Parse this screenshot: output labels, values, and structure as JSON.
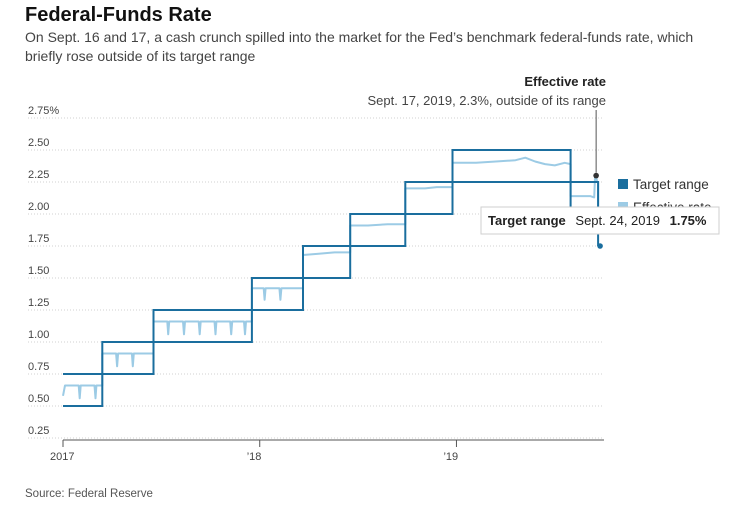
{
  "header": {
    "title": "Federal-Funds Rate",
    "subtitle": "On Sept. 16 and 17, a cash crunch spilled into the market for the Fed’s benchmark federal-funds rate, which briefly rose outside of its target range"
  },
  "footer": {
    "source": "Source: Federal Reserve"
  },
  "colors": {
    "target": "#1a6e9e",
    "effective": "#9ccbe5",
    "grid": "#d0d0d0",
    "axis": "#555555",
    "text": "#222222"
  },
  "annotation": {
    "title": "Effective rate",
    "text": "Sept. 17, 2019, 2.3%, outside of its range"
  },
  "tooltip": {
    "label": "Target range",
    "date": "Sept. 24, 2019",
    "value": "1.75%"
  },
  "chart_data": {
    "type": "line",
    "title": "Federal-Funds Rate",
    "xlabel": "",
    "ylabel": "",
    "x_unit": "decimal year",
    "xlim": [
      2017.0,
      2019.75
    ],
    "ylim": [
      0.25,
      2.75
    ],
    "y_ticks": [
      0.25,
      0.5,
      0.75,
      1.0,
      1.25,
      1.5,
      1.75,
      2.0,
      2.25,
      2.5,
      2.75
    ],
    "y_tick_labels": [
      "0.25",
      "0.50",
      "0.75",
      "1.00",
      "1.25",
      "1.50",
      "1.75",
      "2.00",
      "2.25",
      "2.50",
      "2.75%"
    ],
    "x_ticks": [
      2017.0,
      2018.0,
      2019.0
    ],
    "x_tick_labels": [
      "2017",
      "’18",
      "’19"
    ],
    "grid": true,
    "legend": "right",
    "legend_labels": [
      "Target range",
      "Effective rate"
    ],
    "series": [
      {
        "name": "Target range",
        "kind": "range-steps",
        "upper": [
          [
            2017.0,
            0.75
          ],
          [
            2017.2,
            0.75
          ],
          [
            2017.2,
            1.0
          ],
          [
            2017.46,
            1.0
          ],
          [
            2017.46,
            1.25
          ],
          [
            2017.96,
            1.25
          ],
          [
            2017.96,
            1.5
          ],
          [
            2018.22,
            1.5
          ],
          [
            2018.22,
            1.75
          ],
          [
            2018.46,
            1.75
          ],
          [
            2018.46,
            2.0
          ],
          [
            2018.74,
            2.0
          ],
          [
            2018.74,
            2.25
          ],
          [
            2018.98,
            2.25
          ],
          [
            2018.98,
            2.5
          ],
          [
            2019.58,
            2.5
          ],
          [
            2019.58,
            2.25
          ],
          [
            2019.72,
            2.25
          ],
          [
            2019.72,
            2.0
          ]
        ],
        "lower": [
          [
            2017.0,
            0.5
          ],
          [
            2017.2,
            0.5
          ],
          [
            2017.2,
            0.75
          ],
          [
            2017.46,
            0.75
          ],
          [
            2017.46,
            1.0
          ],
          [
            2017.96,
            1.0
          ],
          [
            2017.96,
            1.25
          ],
          [
            2018.22,
            1.25
          ],
          [
            2018.22,
            1.5
          ],
          [
            2018.46,
            1.5
          ],
          [
            2018.46,
            1.75
          ],
          [
            2018.74,
            1.75
          ],
          [
            2018.74,
            2.0
          ],
          [
            2018.98,
            2.0
          ],
          [
            2018.98,
            2.25
          ],
          [
            2019.58,
            2.25
          ],
          [
            2019.58,
            2.0
          ],
          [
            2019.72,
            2.0
          ],
          [
            2019.72,
            1.75
          ]
        ]
      },
      {
        "name": "Effective rate",
        "kind": "line",
        "points": [
          [
            2017.0,
            0.58
          ],
          [
            2017.01,
            0.66
          ],
          [
            2017.08,
            0.66
          ],
          [
            2017.085,
            0.56
          ],
          [
            2017.09,
            0.66
          ],
          [
            2017.16,
            0.66
          ],
          [
            2017.165,
            0.56
          ],
          [
            2017.17,
            0.66
          ],
          [
            2017.2,
            0.66
          ],
          [
            2017.2,
            0.91
          ],
          [
            2017.27,
            0.91
          ],
          [
            2017.275,
            0.81
          ],
          [
            2017.28,
            0.91
          ],
          [
            2017.35,
            0.91
          ],
          [
            2017.355,
            0.81
          ],
          [
            2017.36,
            0.91
          ],
          [
            2017.46,
            0.91
          ],
          [
            2017.46,
            1.16
          ],
          [
            2017.53,
            1.16
          ],
          [
            2017.535,
            1.06
          ],
          [
            2017.54,
            1.16
          ],
          [
            2017.61,
            1.16
          ],
          [
            2017.615,
            1.06
          ],
          [
            2017.62,
            1.16
          ],
          [
            2017.69,
            1.16
          ],
          [
            2017.695,
            1.06
          ],
          [
            2017.7,
            1.16
          ],
          [
            2017.77,
            1.16
          ],
          [
            2017.775,
            1.06
          ],
          [
            2017.78,
            1.16
          ],
          [
            2017.85,
            1.16
          ],
          [
            2017.855,
            1.06
          ],
          [
            2017.86,
            1.16
          ],
          [
            2017.92,
            1.16
          ],
          [
            2017.925,
            1.06
          ],
          [
            2017.93,
            1.16
          ],
          [
            2017.96,
            1.16
          ],
          [
            2017.96,
            1.42
          ],
          [
            2018.02,
            1.42
          ],
          [
            2018.025,
            1.33
          ],
          [
            2018.03,
            1.42
          ],
          [
            2018.1,
            1.42
          ],
          [
            2018.105,
            1.33
          ],
          [
            2018.11,
            1.42
          ],
          [
            2018.22,
            1.42
          ],
          [
            2018.22,
            1.68
          ],
          [
            2018.3,
            1.69
          ],
          [
            2018.38,
            1.7
          ],
          [
            2018.46,
            1.7
          ],
          [
            2018.46,
            1.91
          ],
          [
            2018.55,
            1.91
          ],
          [
            2018.65,
            1.92
          ],
          [
            2018.74,
            1.92
          ],
          [
            2018.74,
            2.2
          ],
          [
            2018.84,
            2.2
          ],
          [
            2018.9,
            2.21
          ],
          [
            2018.98,
            2.21
          ],
          [
            2018.98,
            2.4
          ],
          [
            2019.1,
            2.4
          ],
          [
            2019.2,
            2.41
          ],
          [
            2019.3,
            2.42
          ],
          [
            2019.35,
            2.44
          ],
          [
            2019.4,
            2.41
          ],
          [
            2019.45,
            2.39
          ],
          [
            2019.5,
            2.38
          ],
          [
            2019.55,
            2.4
          ],
          [
            2019.58,
            2.39
          ],
          [
            2019.58,
            2.14
          ],
          [
            2019.68,
            2.14
          ],
          [
            2019.7,
            2.13
          ],
          [
            2019.705,
            2.3
          ],
          [
            2019.71,
            2.3
          ],
          [
            2019.715,
            2.25
          ],
          [
            2019.72,
            2.25
          ],
          [
            2019.72,
            1.9
          ]
        ]
      }
    ],
    "highlights": [
      {
        "x": 2019.71,
        "y": 2.3,
        "series": "Effective rate"
      },
      {
        "x": 2019.73,
        "y": 1.75,
        "series": "Target range"
      }
    ]
  }
}
